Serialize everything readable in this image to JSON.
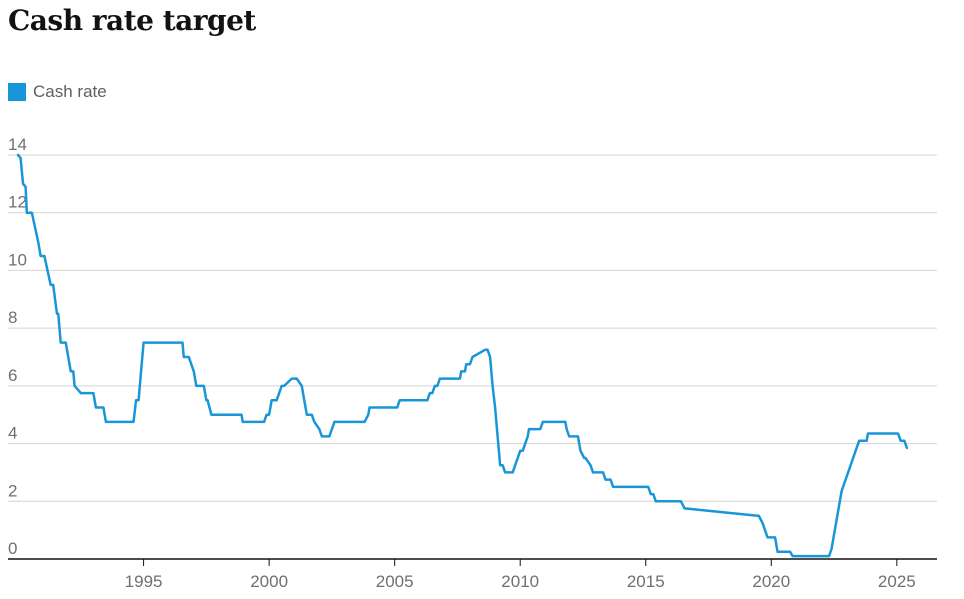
{
  "colors": {
    "series": "#1996d8",
    "grid": "#d4d4d4",
    "axis": "#121212",
    "text": "#121212",
    "tick": "#707070"
  },
  "chart_data": {
    "type": "line",
    "title": "Cash rate target",
    "xlabel": "",
    "ylabel": "",
    "xlim": [
      1989.6,
      2026.6
    ],
    "ylim": [
      0,
      14
    ],
    "grid": true,
    "legend_placement": "top-left",
    "y_ticks": [
      "0",
      "2",
      "4",
      "6",
      "8",
      "10",
      "12",
      "14"
    ],
    "x_ticks": [
      "1995",
      "2000",
      "2005",
      "2010",
      "2015",
      "2020",
      "2025"
    ],
    "series": [
      {
        "name": "Cash rate",
        "x": [
          1990.0,
          1990.1,
          1990.2,
          1990.3,
          1990.35,
          1990.5,
          1990.55,
          1990.8,
          1990.9,
          1991.05,
          1991.3,
          1991.4,
          1991.55,
          1991.6,
          1991.7,
          1991.75,
          1991.85,
          1991.9,
          1992.1,
          1992.2,
          1992.25,
          1992.5,
          1993.0,
          1993.1,
          1993.4,
          1993.5,
          1994.6,
          1994.7,
          1994.8,
          1994.9,
          1995.0,
          1996.55,
          1996.6,
          1996.8,
          1997.0,
          1997.1,
          1997.4,
          1997.5,
          1997.55,
          1997.7,
          1997.8,
          1998.9,
          1998.95,
          1999.8,
          1999.9,
          2000.0,
          2000.1,
          2000.3,
          2000.5,
          2000.6,
          2000.9,
          2001.0,
          2001.1,
          2001.3,
          2001.4,
          2001.5,
          2001.6,
          2001.7,
          2001.8,
          2002.0,
          2002.1,
          2002.2,
          2002.4,
          2002.5,
          2002.6,
          2003.8,
          2003.95,
          2004.0,
          2005.1,
          2005.2,
          2006.3,
          2006.4,
          2006.5,
          2006.6,
          2006.7,
          2006.8,
          2006.85,
          2007.6,
          2007.65,
          2007.8,
          2007.85,
          2008.0,
          2008.1,
          2008.6,
          2008.7,
          2008.8,
          2008.9,
          2009.0,
          2009.1,
          2009.2,
          2009.3,
          2009.4,
          2009.7,
          2009.8,
          2009.9,
          2010.0,
          2010.1,
          2010.3,
          2010.35,
          2010.8,
          2010.9,
          2011.8,
          2011.85,
          2011.95,
          2012.3,
          2012.4,
          2012.55,
          2012.6,
          2012.8,
          2012.9,
          2013.3,
          2013.4,
          2013.6,
          2013.7,
          2015.1,
          2015.2,
          2015.3,
          2015.4,
          2016.3,
          2016.4,
          2016.55,
          2016.6,
          2019.45,
          2019.5,
          2019.65,
          2019.75,
          2019.85,
          2020.15,
          2020.25,
          2020.75,
          2020.85,
          2022.3,
          2022.4,
          2022.5,
          2022.6,
          2022.7,
          2022.8,
          2022.9,
          2023.0,
          2023.1,
          2023.2,
          2023.3,
          2023.4,
          2023.5,
          2023.8,
          2023.85,
          2024.9,
          2025.05,
          2025.15,
          2025.3,
          2025.4
        ],
        "values": [
          14.0,
          13.9,
          13.0,
          12.9,
          12.0,
          12.0,
          12.0,
          11.0,
          10.5,
          10.5,
          9.5,
          9.5,
          8.5,
          8.5,
          7.5,
          7.5,
          7.5,
          7.5,
          6.5,
          6.5,
          6.0,
          5.75,
          5.75,
          5.25,
          5.25,
          4.75,
          4.75,
          5.5,
          5.5,
          6.5,
          7.5,
          7.5,
          7.0,
          7.0,
          6.5,
          6.0,
          6.0,
          5.5,
          5.5,
          5.0,
          5.0,
          5.0,
          4.75,
          4.75,
          5.0,
          5.0,
          5.5,
          5.5,
          6.0,
          6.0,
          6.25,
          6.25,
          6.25,
          6.0,
          5.5,
          5.0,
          5.0,
          5.0,
          4.75,
          4.5,
          4.25,
          4.25,
          4.25,
          4.5,
          4.75,
          4.75,
          5.0,
          5.25,
          5.25,
          5.5,
          5.5,
          5.75,
          5.75,
          6.0,
          6.0,
          6.25,
          6.25,
          6.25,
          6.5,
          6.5,
          6.75,
          6.75,
          7.0,
          7.25,
          7.25,
          7.0,
          6.0,
          5.25,
          4.25,
          3.25,
          3.25,
          3.0,
          3.0,
          3.25,
          3.5,
          3.75,
          3.75,
          4.25,
          4.5,
          4.5,
          4.75,
          4.75,
          4.5,
          4.25,
          4.25,
          3.75,
          3.5,
          3.5,
          3.25,
          3.0,
          3.0,
          2.75,
          2.75,
          2.5,
          2.5,
          2.25,
          2.25,
          2.0,
          2.0,
          2.0,
          1.75,
          1.75,
          1.5,
          1.5,
          1.25,
          1.0,
          0.75,
          0.75,
          0.25,
          0.25,
          0.1,
          0.1,
          0.35,
          0.85,
          1.35,
          1.85,
          2.35,
          2.6,
          2.85,
          3.1,
          3.35,
          3.6,
          3.85,
          4.1,
          4.1,
          4.35,
          4.35,
          4.35,
          4.1,
          4.1,
          3.85
        ]
      }
    ]
  }
}
